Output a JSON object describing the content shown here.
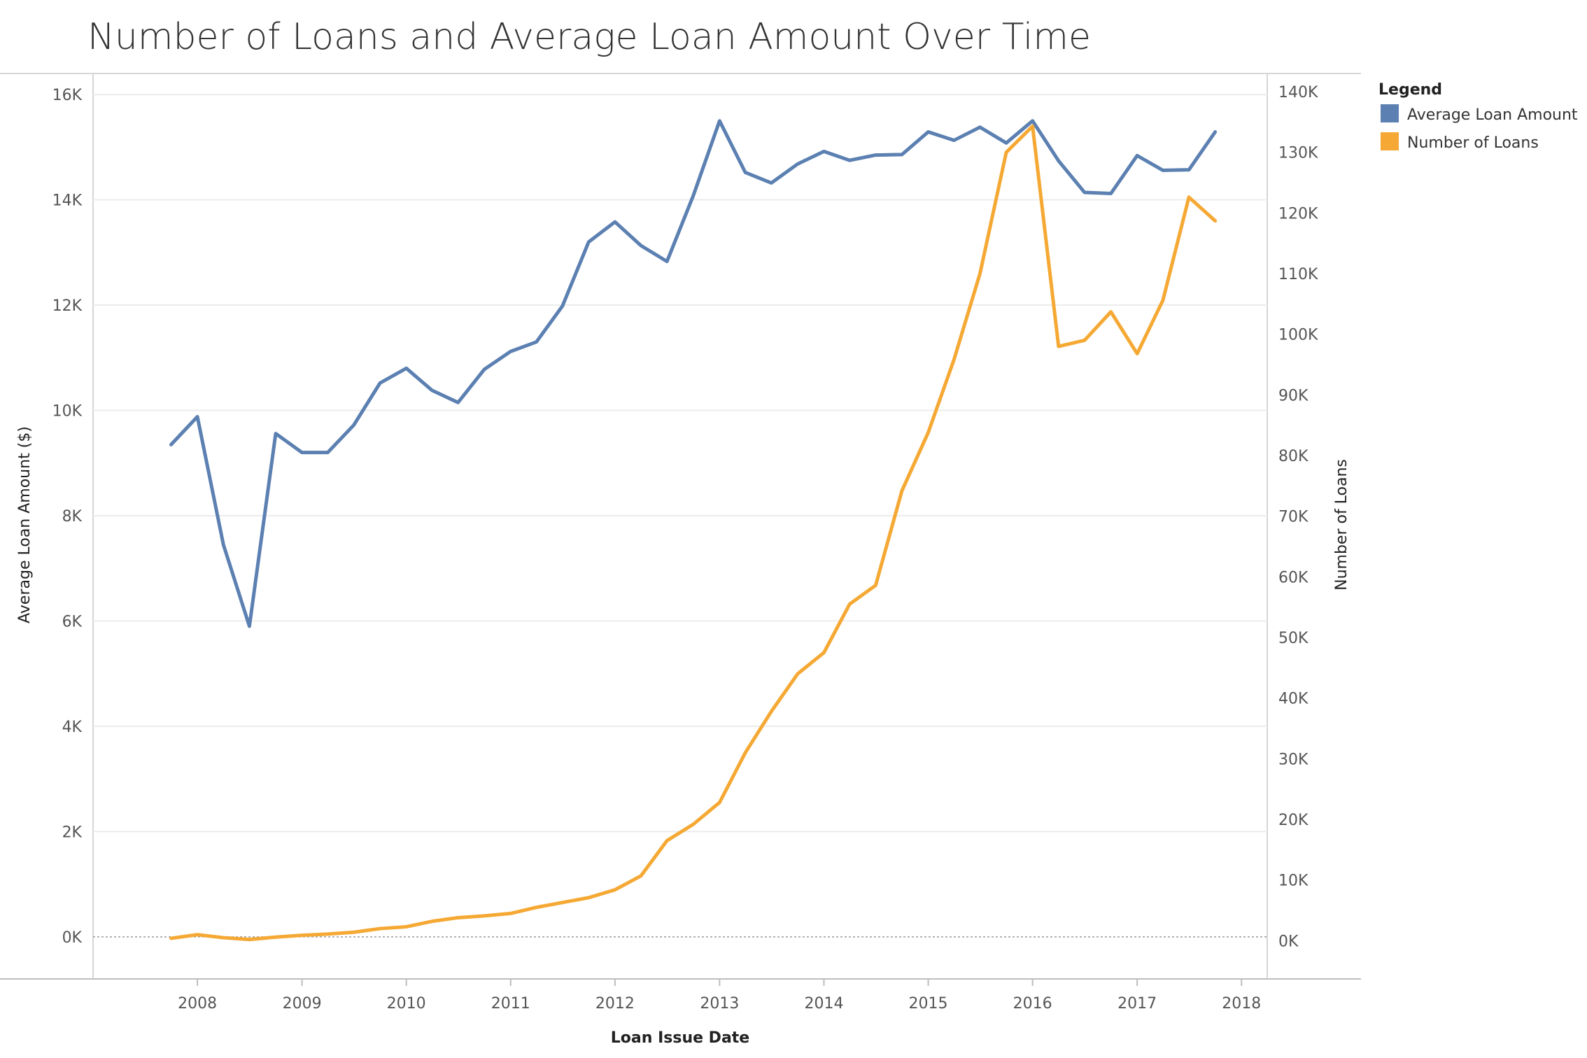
{
  "chart_data": {
    "type": "line",
    "title": "Number of Loans and Average Loan Amount Over Time",
    "xlabel": "Loan Issue Date",
    "ylabel_left": "Average Loan Amount ($)",
    "ylabel_right": "Number of Loans",
    "xticks": [
      "2008",
      "2009",
      "2010",
      "2011",
      "2012",
      "2013",
      "2014",
      "2015",
      "2016",
      "2017",
      "2018"
    ],
    "yticks_left": [
      "0K",
      "2K",
      "4K",
      "6K",
      "8K",
      "10K",
      "12K",
      "14K",
      "16K"
    ],
    "yticks_right": [
      "0K",
      "10K",
      "20K",
      "30K",
      "40K",
      "50K",
      "60K",
      "70K",
      "80K",
      "90K",
      "100K",
      "110K",
      "120K",
      "130K",
      "140K"
    ],
    "xlim": [
      "2007-01-01",
      "2018-04-01"
    ],
    "ylim_left": [
      -800,
      16400
    ],
    "ylim_right": [
      -6300,
      143000
    ],
    "grid": true,
    "legend": {
      "title": "Legend",
      "position": "right"
    },
    "x": [
      "2007-10-01",
      "2008-01-01",
      "2008-04-01",
      "2008-07-01",
      "2008-10-01",
      "2009-01-01",
      "2009-04-01",
      "2009-07-01",
      "2009-10-01",
      "2010-01-01",
      "2010-04-01",
      "2010-07-01",
      "2010-10-01",
      "2011-01-01",
      "2011-04-01",
      "2011-07-01",
      "2011-10-01",
      "2012-01-01",
      "2012-04-01",
      "2012-07-01",
      "2012-10-01",
      "2013-01-01",
      "2013-04-01",
      "2013-07-01",
      "2013-10-01",
      "2014-01-01",
      "2014-04-01",
      "2014-07-01",
      "2014-10-01",
      "2015-01-01",
      "2015-04-01",
      "2015-07-01",
      "2015-10-01",
      "2016-01-01",
      "2016-04-01",
      "2016-07-01",
      "2016-10-01",
      "2017-01-01",
      "2017-04-01",
      "2017-07-01",
      "2017-10-01"
    ],
    "series": [
      {
        "name": "Average Loan Amount",
        "axis": "left",
        "color": "#5B80B1",
        "values": [
          9350,
          9880,
          7450,
          5900,
          9560,
          9200,
          9200,
          9720,
          10520,
          10800,
          10380,
          10150,
          10780,
          11120,
          11300,
          11980,
          13200,
          13580,
          13130,
          12830,
          14080,
          15500,
          14520,
          14320,
          14680,
          14920,
          14750,
          14850,
          14860,
          15290,
          15130,
          15380,
          15080,
          15500,
          14740,
          14140,
          14120,
          14840,
          14560,
          14570,
          15290
        ]
      },
      {
        "name": "Number of Loans",
        "axis": "right",
        "color": "#F5A934",
        "values": [
          400,
          1000,
          500,
          200,
          600,
          900,
          1100,
          1400,
          2000,
          2300,
          3200,
          3800,
          4100,
          4500,
          5500,
          6300,
          7100,
          8400,
          10700,
          16500,
          19200,
          22800,
          31000,
          37800,
          44000,
          47500,
          55500,
          58600,
          74200,
          83800,
          95800,
          110000,
          130000,
          134300,
          98000,
          99000,
          103700,
          96800,
          105600,
          122600,
          118700
        ]
      }
    ]
  }
}
